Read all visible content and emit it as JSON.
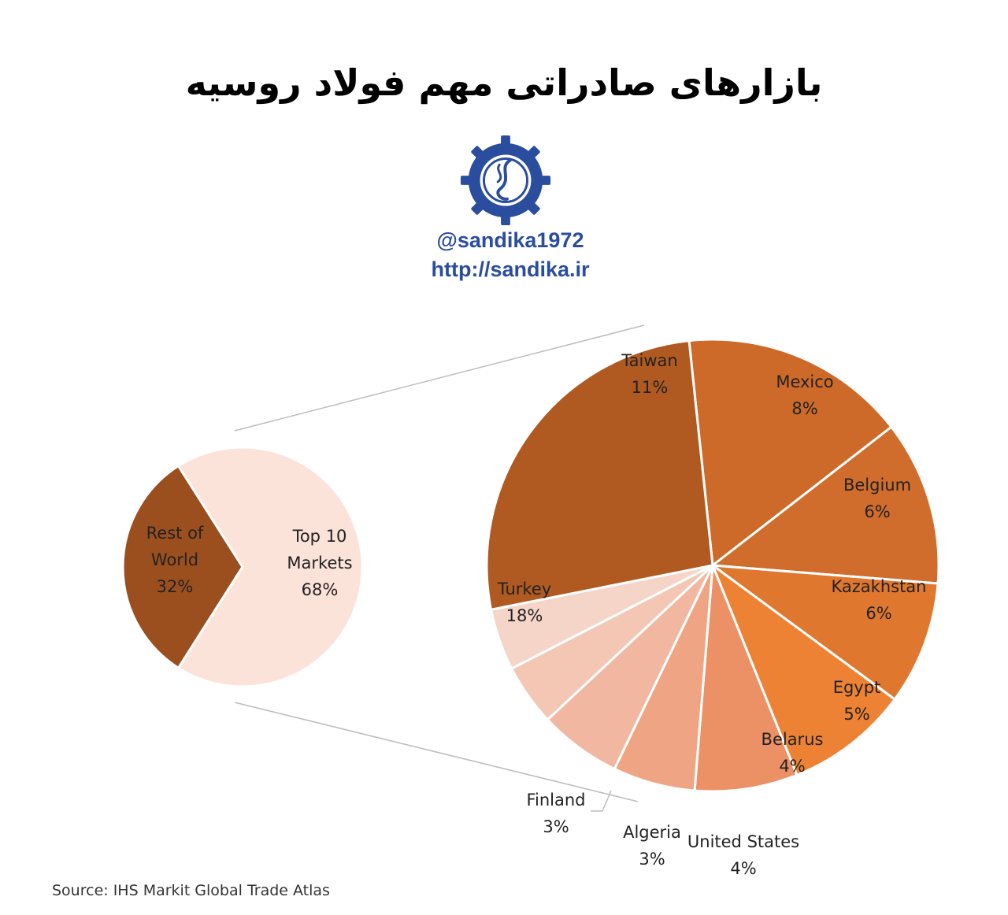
{
  "title": "بازارهای صادراتی مهم فولاد روسیه",
  "brand": {
    "handle": "@sandika1972",
    "url": "http://sandika.ir",
    "logo_color": "#2a4d9e"
  },
  "source": "Source: IHS Markit Global Trade Atlas",
  "chart_data": [
    {
      "type": "pie",
      "categories": [
        "Rest of World",
        "Top 10 Markets"
      ],
      "label_lines": [
        [
          "Rest of",
          "World"
        ],
        [
          "Top 10",
          "Markets"
        ]
      ],
      "values": [
        32,
        68
      ],
      "value_labels": [
        "32%",
        "68%"
      ],
      "colors": [
        "#9c4f1e",
        "#fce3da"
      ]
    },
    {
      "type": "pie",
      "categories": [
        "Taiwan",
        "Mexico",
        "Belgium",
        "Kazakhstan",
        "Egypt",
        "Belarus",
        "United States",
        "Algeria",
        "Finland",
        "Turkey"
      ],
      "values": [
        11,
        8,
        6,
        6,
        5,
        4,
        4,
        3,
        3,
        18
      ],
      "value_labels": [
        "11%",
        "8%",
        "6%",
        "6%",
        "5%",
        "4%",
        "4%",
        "3%",
        "3%",
        "18%"
      ],
      "colors": [
        "#cd6a2a",
        "#d06c2c",
        "#e0772f",
        "#ed8234",
        "#ec9066",
        "#efa583",
        "#f2b7a0",
        "#f4c6b4",
        "#f6d5c9",
        "#b05a22"
      ]
    }
  ]
}
